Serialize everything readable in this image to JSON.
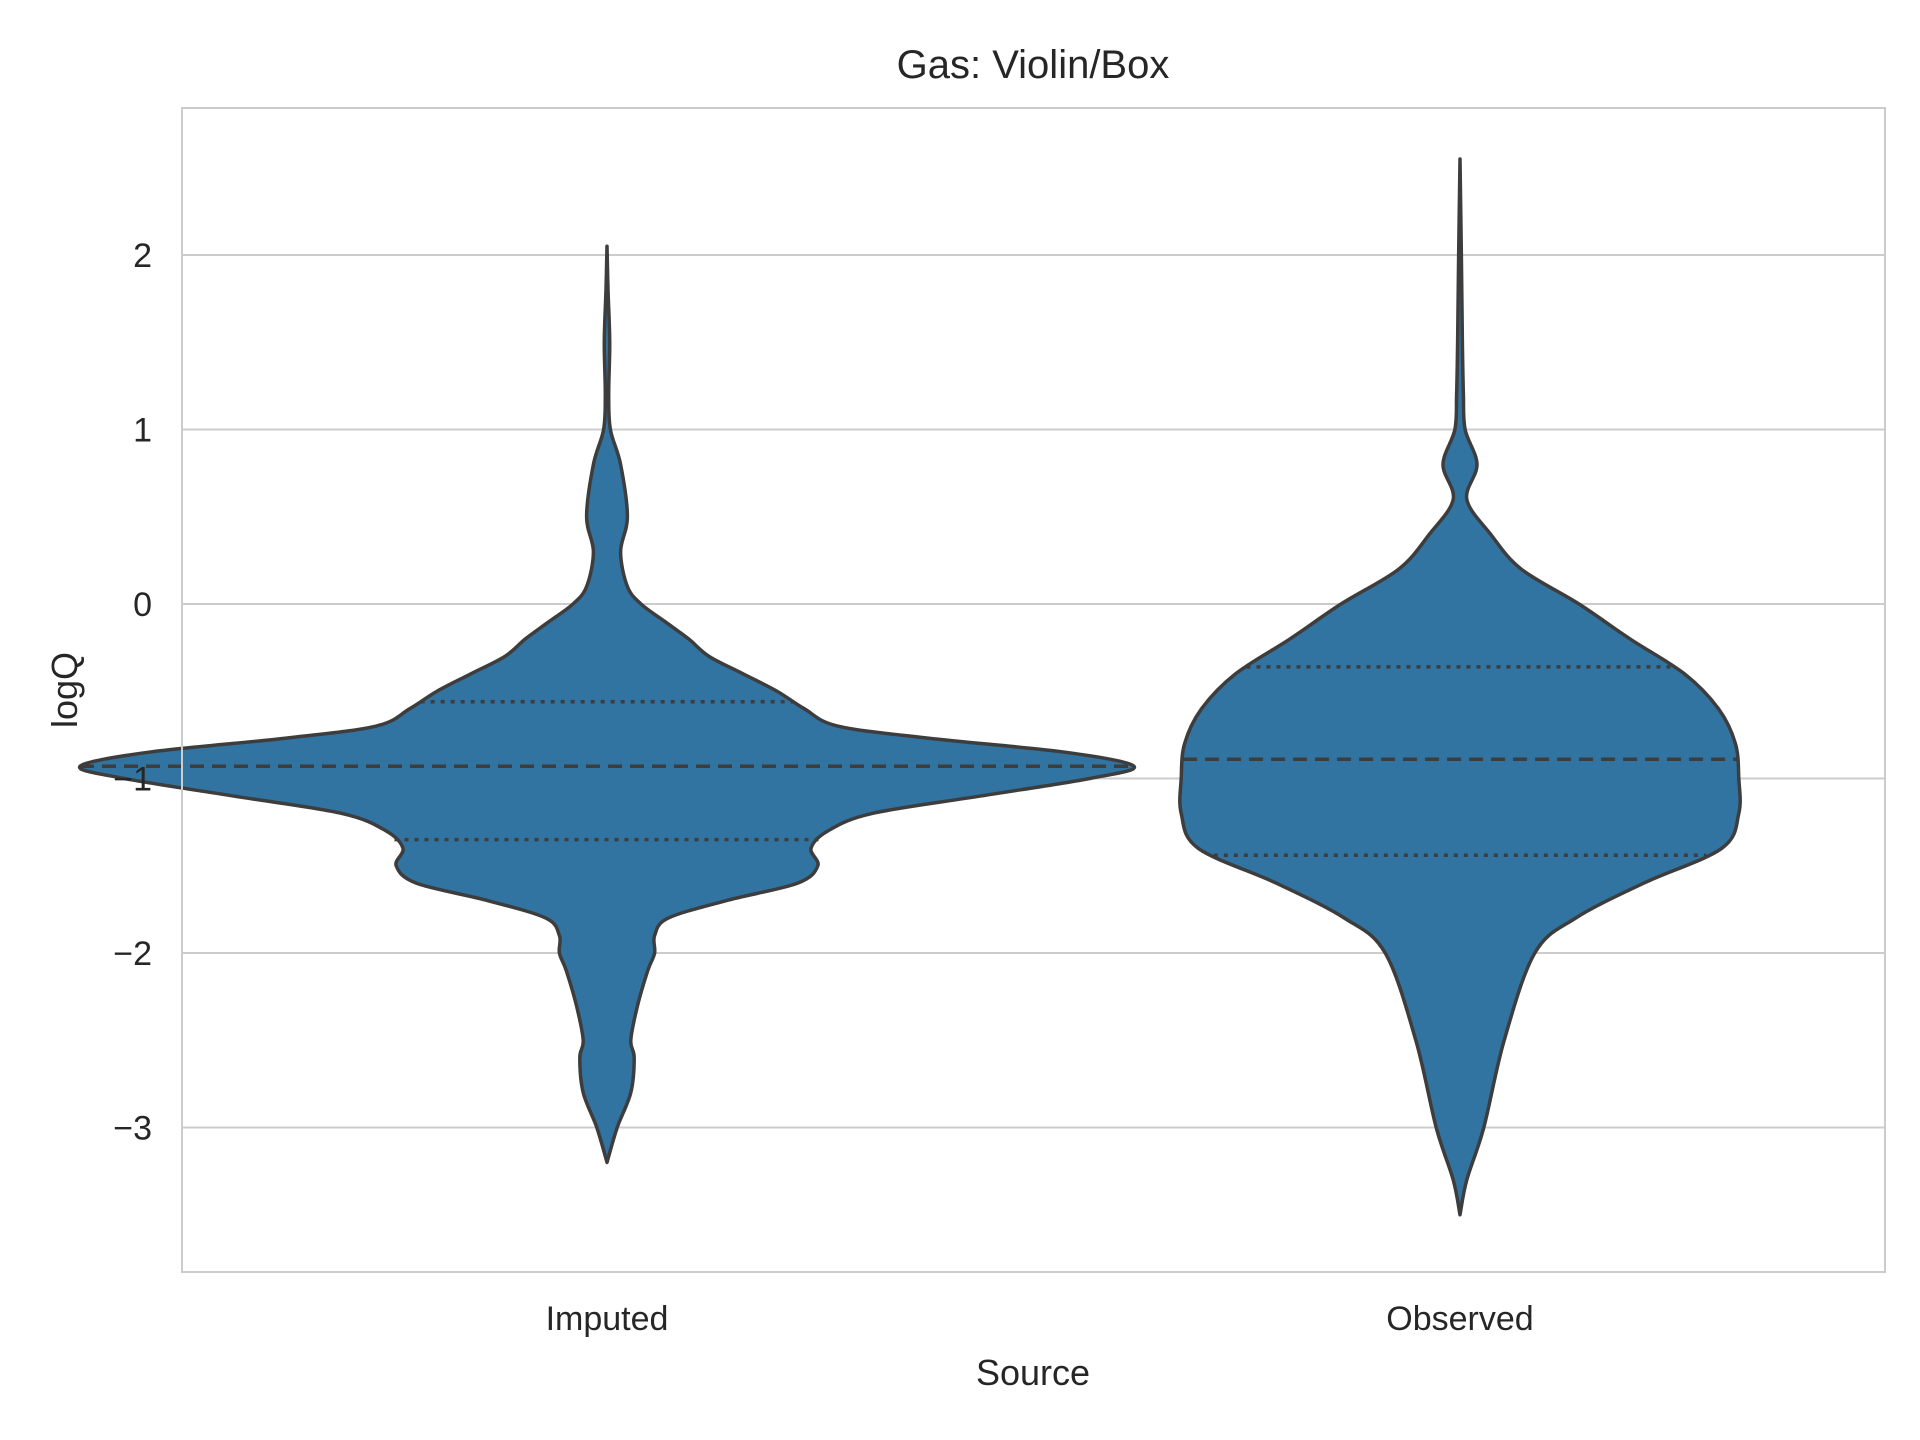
{
  "chart_data": {
    "type": "violin",
    "title": "Gas: Violin/Box",
    "xlabel": "Source",
    "ylabel": "logQ",
    "categories": [
      "Imputed",
      "Observed"
    ],
    "yticks": [
      -3,
      -2,
      -1,
      0,
      1,
      2
    ],
    "ytick_labels": [
      "−3",
      "−2",
      "−1",
      "0",
      "1",
      "2"
    ],
    "ylim": [
      -3.8,
      2.87
    ],
    "grid": "y",
    "legend": "none",
    "inner": "quartiles",
    "colors": {
      "fill": "#3274a1",
      "edge": "#3d3d3d",
      "grid": "#cccccc",
      "frame": "#cccccc"
    },
    "violins": [
      {
        "category": "Imputed",
        "quartiles": {
          "q1": -1.35,
          "median": -0.93,
          "q3": -0.56
        },
        "profile": [
          [
            -3.2,
            0.0
          ],
          [
            -3.0,
            0.03
          ],
          [
            -2.8,
            0.07
          ],
          [
            -2.6,
            0.08
          ],
          [
            -2.5,
            0.07
          ],
          [
            -2.3,
            0.09
          ],
          [
            -2.1,
            0.12
          ],
          [
            -2.0,
            0.14
          ],
          [
            -1.9,
            0.14
          ],
          [
            -1.8,
            0.18
          ],
          [
            -1.7,
            0.35
          ],
          [
            -1.6,
            0.56
          ],
          [
            -1.5,
            0.62
          ],
          [
            -1.4,
            0.6
          ],
          [
            -1.3,
            0.65
          ],
          [
            -1.2,
            0.78
          ],
          [
            -1.1,
            1.1
          ],
          [
            -1.0,
            1.42
          ],
          [
            -0.93,
            1.55
          ],
          [
            -0.85,
            1.35
          ],
          [
            -0.77,
            0.95
          ],
          [
            -0.7,
            0.68
          ],
          [
            -0.6,
            0.58
          ],
          [
            -0.5,
            0.5
          ],
          [
            -0.4,
            0.4
          ],
          [
            -0.3,
            0.3
          ],
          [
            -0.2,
            0.24
          ],
          [
            -0.1,
            0.17
          ],
          [
            0.0,
            0.1
          ],
          [
            0.1,
            0.06
          ],
          [
            0.3,
            0.04
          ],
          [
            0.5,
            0.06
          ],
          [
            0.8,
            0.04
          ],
          [
            1.0,
            0.01
          ],
          [
            1.2,
            0.005
          ],
          [
            1.5,
            0.008
          ],
          [
            1.8,
            0.003
          ],
          [
            2.05,
            0.0
          ]
        ]
      },
      {
        "category": "Observed",
        "quartiles": {
          "q1": -1.44,
          "median": -0.89,
          "q3": -0.36
        },
        "profile": [
          [
            -3.5,
            0.0
          ],
          [
            -3.3,
            0.02
          ],
          [
            -3.0,
            0.07
          ],
          [
            -2.5,
            0.13
          ],
          [
            -2.0,
            0.22
          ],
          [
            -1.8,
            0.34
          ],
          [
            -1.6,
            0.54
          ],
          [
            -1.4,
            0.77
          ],
          [
            -1.2,
            0.82
          ],
          [
            -1.0,
            0.82
          ],
          [
            -0.8,
            0.81
          ],
          [
            -0.6,
            0.76
          ],
          [
            -0.4,
            0.66
          ],
          [
            -0.2,
            0.5
          ],
          [
            0.0,
            0.35
          ],
          [
            0.2,
            0.18
          ],
          [
            0.4,
            0.09
          ],
          [
            0.6,
            0.02
          ],
          [
            0.8,
            -0.05
          ],
          [
            1.0,
            0.015
          ],
          [
            1.2,
            0.01
          ],
          [
            1.5,
            0.007
          ],
          [
            2.0,
            0.004
          ],
          [
            2.55,
            0.0
          ]
        ]
      }
    ]
  }
}
